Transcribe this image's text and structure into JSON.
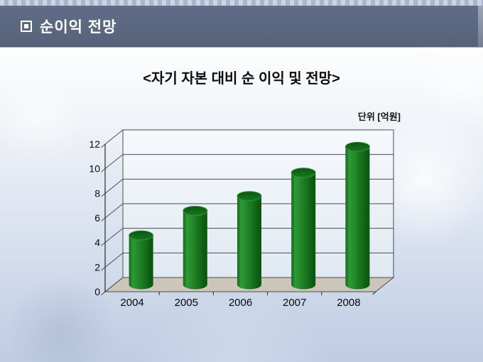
{
  "header": {
    "title": "순이익 전망",
    "bullet_icon": "square-in-square"
  },
  "chart_data": {
    "type": "bar",
    "style": "3d-cylinder",
    "title": "<자기 자본 대비 순 이익 및 전망>",
    "unit_label": "단위 [억원]",
    "categories": [
      "2004",
      "2005",
      "2006",
      "2007",
      "2008"
    ],
    "values": [
      4.0,
      6.0,
      7.2,
      9.1,
      11.2
    ],
    "xlabel": "",
    "ylabel": "",
    "ylim": [
      0,
      12
    ],
    "y_ticks": [
      0,
      2,
      4,
      6,
      8,
      10,
      12
    ],
    "grid": true,
    "legend": false,
    "colors": {
      "bar_body": "#1e7e24",
      "bar_body_light": "#2e9a35",
      "bar_body_dark": "#0a5410",
      "bar_top": "#0f5f16",
      "floor": "#cbc5ba",
      "wall_top": "#f6f9fc",
      "wall_bottom": "#e0e9f1",
      "gridline": "#4d4d4d",
      "axis": "#2b2b2b",
      "header_band": "#5c6880",
      "background_bottom": "#c3cfe5"
    }
  }
}
